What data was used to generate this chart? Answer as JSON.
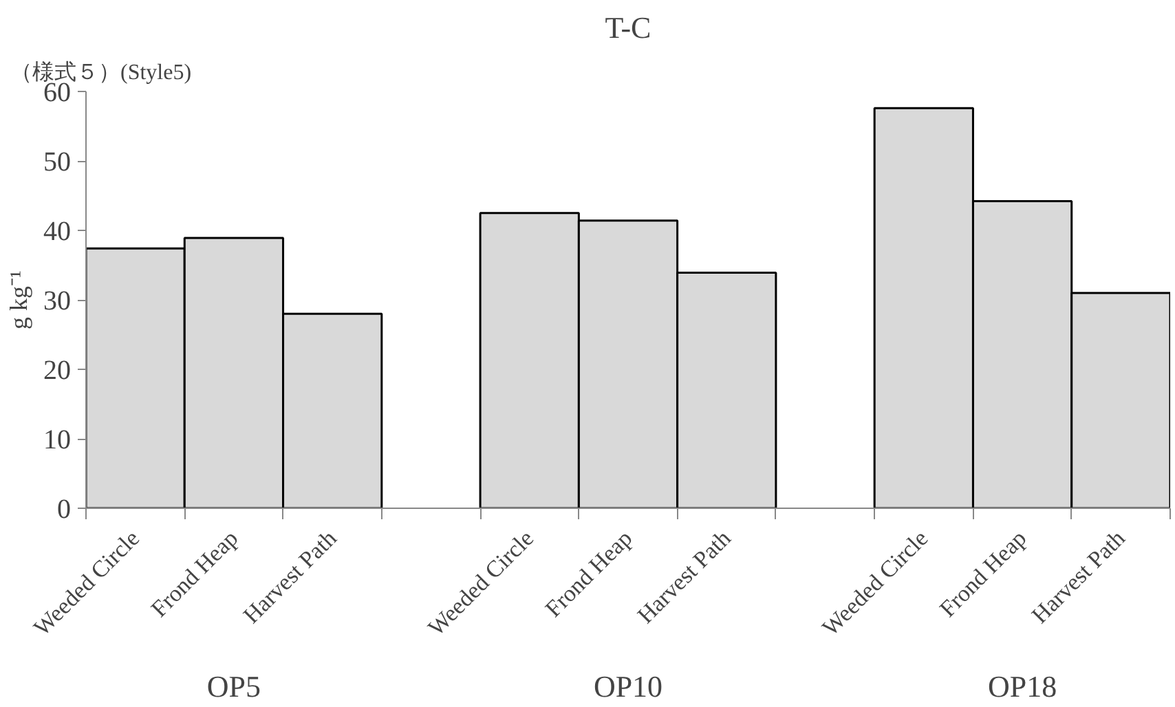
{
  "chart_data": {
    "type": "bar",
    "title": "T-C",
    "ylabel": "g kg⁻¹",
    "categories": [
      "Weeded Circle",
      "Frond Heap",
      "Harvest Path",
      null,
      "Weeded Circle",
      "Frond Heap",
      "Harvest Path",
      null,
      "Weeded Circle",
      "Frond Heap",
      "Harvest Path"
    ],
    "values": [
      37.4,
      38.9,
      28.0,
      null,
      42.5,
      41.4,
      33.9,
      null,
      57.6,
      44.2,
      31.0
    ],
    "color": "#d9d9d9",
    "ylim": [
      0,
      60
    ],
    "yticks": [
      0,
      10,
      20,
      30,
      40,
      50,
      60
    ],
    "grid": false,
    "annotations": [
      "（様式５）(Style5)",
      "OP5",
      "OP10",
      "OP18"
    ]
  }
}
